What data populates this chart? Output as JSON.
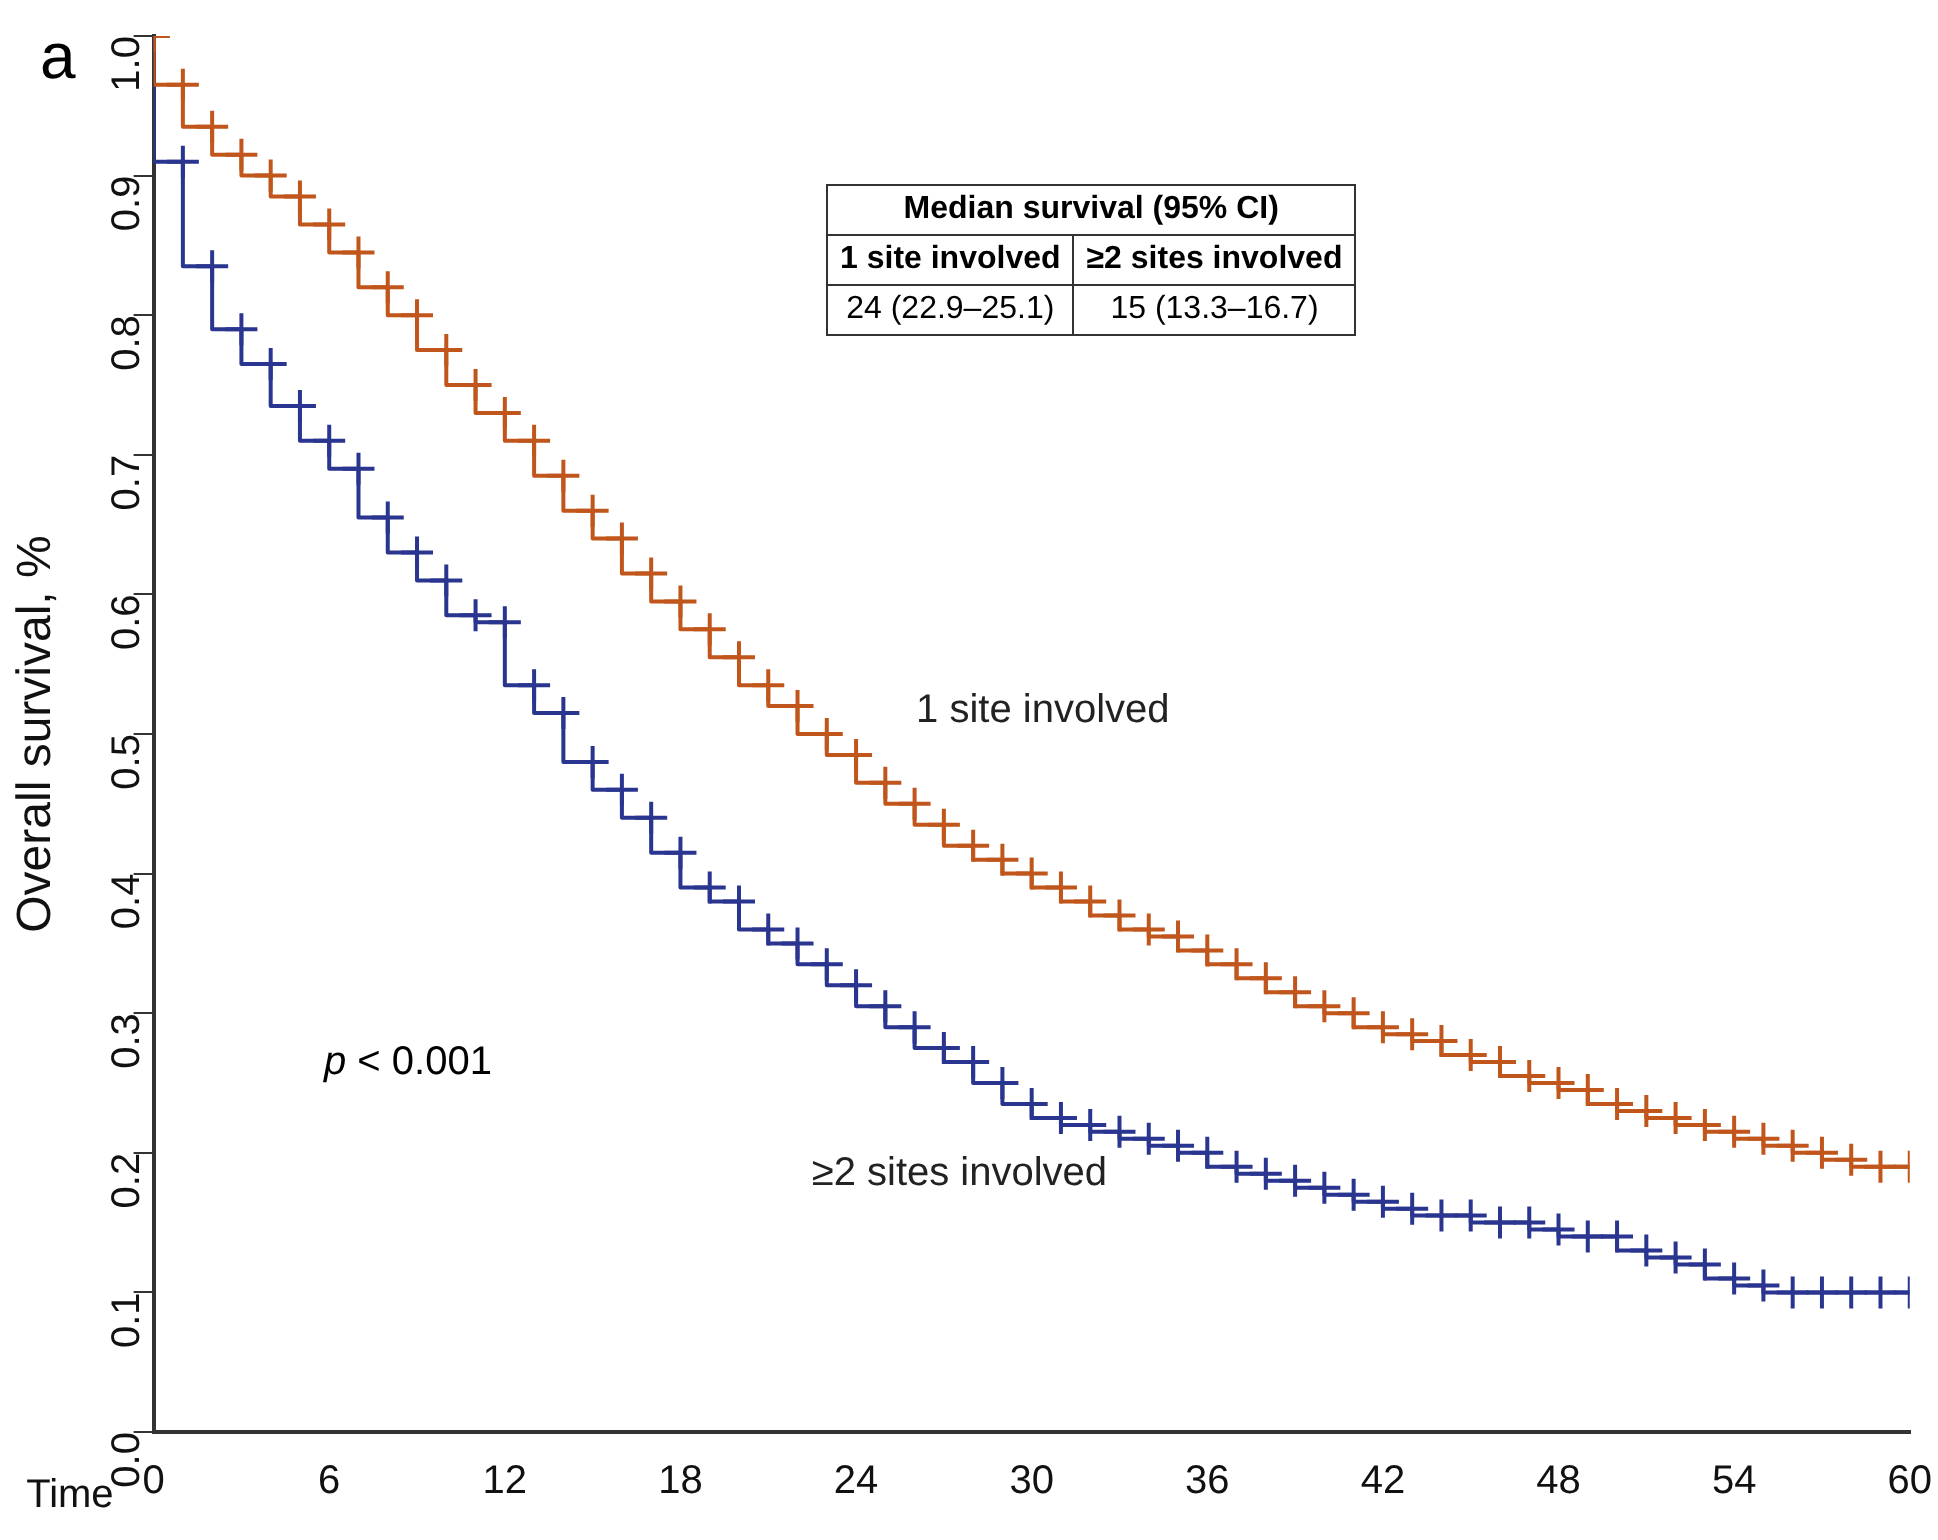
{
  "chart_data": {
    "type": "step",
    "xlabel": "Time",
    "ylabel": "Overall survival, %",
    "x": [
      0,
      1,
      2,
      3,
      4,
      5,
      6,
      7,
      8,
      9,
      10,
      11,
      12,
      13,
      14,
      15,
      16,
      17,
      18,
      19,
      20,
      21,
      22,
      23,
      24,
      25,
      26,
      27,
      28,
      29,
      30,
      31,
      32,
      33,
      34,
      35,
      36,
      37,
      38,
      39,
      40,
      41,
      42,
      43,
      44,
      45,
      46,
      47,
      48,
      49,
      50,
      51,
      52,
      53,
      54,
      55,
      56,
      57,
      58,
      59,
      60
    ],
    "series": [
      {
        "name": "1 site involved",
        "color": "#c0561b",
        "values": [
          1.0,
          0.965,
          0.935,
          0.915,
          0.9,
          0.885,
          0.865,
          0.845,
          0.82,
          0.8,
          0.775,
          0.75,
          0.73,
          0.71,
          0.685,
          0.66,
          0.64,
          0.615,
          0.595,
          0.575,
          0.555,
          0.535,
          0.52,
          0.5,
          0.485,
          0.465,
          0.45,
          0.435,
          0.42,
          0.41,
          0.4,
          0.39,
          0.38,
          0.37,
          0.36,
          0.355,
          0.345,
          0.335,
          0.325,
          0.315,
          0.305,
          0.3,
          0.29,
          0.285,
          0.28,
          0.27,
          0.265,
          0.255,
          0.25,
          0.245,
          0.235,
          0.23,
          0.225,
          0.22,
          0.215,
          0.21,
          0.205,
          0.2,
          0.195,
          0.19,
          0.19
        ]
      },
      {
        "name": "≥2 sites involved",
        "color": "#2a3590",
        "values": [
          1.0,
          0.91,
          0.835,
          0.79,
          0.765,
          0.735,
          0.71,
          0.69,
          0.655,
          0.63,
          0.61,
          0.585,
          0.58,
          0.535,
          0.515,
          0.48,
          0.46,
          0.44,
          0.415,
          0.39,
          0.38,
          0.36,
          0.35,
          0.335,
          0.32,
          0.305,
          0.29,
          0.275,
          0.265,
          0.25,
          0.235,
          0.225,
          0.22,
          0.215,
          0.21,
          0.205,
          0.2,
          0.19,
          0.185,
          0.18,
          0.175,
          0.17,
          0.165,
          0.16,
          0.155,
          0.155,
          0.15,
          0.15,
          0.145,
          0.14,
          0.14,
          0.13,
          0.125,
          0.12,
          0.11,
          0.105,
          0.1,
          0.1,
          0.1,
          0.1,
          0.1
        ]
      }
    ],
    "xlim": [
      0,
      60
    ],
    "xticks": [
      0,
      6,
      12,
      18,
      24,
      30,
      36,
      42,
      48,
      54,
      60
    ],
    "ylim": [
      0,
      1
    ],
    "yticks": [
      {
        "value": 0,
        "label": "0.0"
      },
      0.1,
      0.2,
      0.3,
      0.4,
      0.5,
      0.6,
      0.7,
      0.8,
      0.9,
      {
        "value": 1,
        "label": "1.0"
      }
    ],
    "marker": "cross",
    "legend": false,
    "grid": false,
    "annotations": [
      "a",
      "p < 0.001",
      "Median survival (95% CI)",
      "1 site involved",
      "≥2 sites involved",
      "24 (22.9–25.1)",
      "15 (13.3–16.7)"
    ]
  }
}
